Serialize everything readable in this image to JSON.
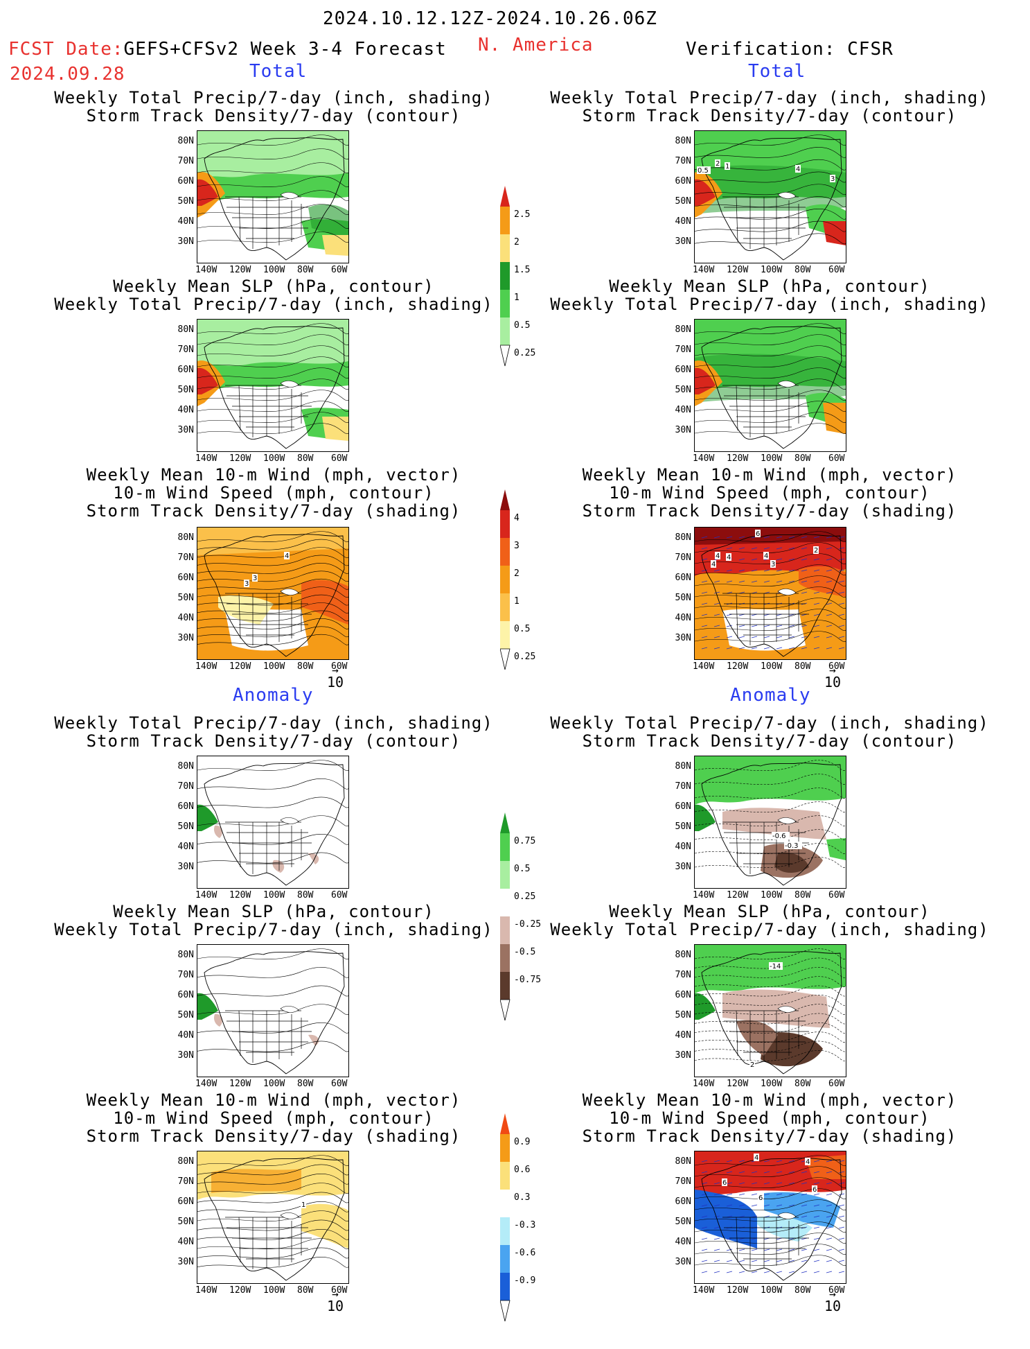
{
  "header": {
    "date_range": "2024.10.12.12Z-2024.10.26.06Z",
    "fcst_label": "FCST Date:",
    "fcst_date": "2024.09.28",
    "model": "GEFS+CFSv2 Week 3-4 Forecast",
    "region": "N. America",
    "verification": "Verification: CFSR"
  },
  "sections": {
    "total": "Total",
    "anomaly": "Anomaly"
  },
  "panel_titles": {
    "precip_storm": [
      "Weekly Total Precip/7-day (inch, shading)",
      "Storm Track Density/7-day (contour)"
    ],
    "slp_precip": [
      "Weekly Mean SLP (hPa, contour)",
      "Weekly Total Precip/7-day (inch, shading)"
    ],
    "wind_storm": [
      "Weekly Mean 10-m Wind (mph, vector)",
      "10-m Wind Speed (mph, contour)",
      "Storm Track Density/7-day (shading)"
    ]
  },
  "axes": {
    "lat_ticks": [
      "80N",
      "70N",
      "60N",
      "50N",
      "40N",
      "30N"
    ],
    "lon_ticks": [
      "140W",
      "120W",
      "100W",
      "80W",
      "60W"
    ]
  },
  "vector_ref": "10",
  "colorbars": {
    "total_precip": {
      "labels": [
        "2.5",
        "2",
        "1.5",
        "1",
        "0.5",
        "0.25"
      ],
      "colors": [
        "#d8261c",
        "#f59b17",
        "#fbe07a",
        "#1f9a2a",
        "#4fcf4f",
        "#a8eea0"
      ]
    },
    "total_storm": {
      "labels": [
        "4",
        "3",
        "2",
        "1",
        "0.5",
        "0.25"
      ],
      "colors": [
        "#8c0d0d",
        "#d8261c",
        "#f06018",
        "#f59b17",
        "#fbc04a",
        "#fdf3a8"
      ]
    },
    "anom_precip": {
      "labels": [
        "0.75",
        "0.5",
        "0.25",
        "-0.25",
        "-0.5",
        "-0.75"
      ],
      "colors": [
        "#1f9a2a",
        "#4fcf4f",
        "#a8eea0",
        "#ffffff",
        "#d9b8ae",
        "#9b7262",
        "#5b3a2c"
      ]
    },
    "anom_storm": {
      "labels": [
        "0.9",
        "0.6",
        "0.3",
        "-0.3",
        "-0.6",
        "-0.9"
      ],
      "colors": [
        "#f04a14",
        "#f59b17",
        "#fbe07a",
        "#ffffff",
        "#b4ecf8",
        "#4aa4f0",
        "#1a5fd8"
      ]
    }
  },
  "contour_labels": {
    "fr1": [
      "0.5",
      "2",
      "1",
      "4",
      "3"
    ],
    "fl3": [
      "4",
      "3",
      "3"
    ],
    "fr3": [
      "6",
      "4",
      "4",
      "3",
      "2",
      "4",
      "4"
    ],
    "fr4": [
      "-0.6",
      "-0.3"
    ],
    "fr5": [
      "-14",
      "2"
    ],
    "fl6": [
      "1"
    ],
    "fr6": [
      "4",
      "4",
      "6",
      "6",
      "6"
    ]
  },
  "colors": {
    "title_red": "#e8312e",
    "title_blue": "#2a3cf0"
  }
}
